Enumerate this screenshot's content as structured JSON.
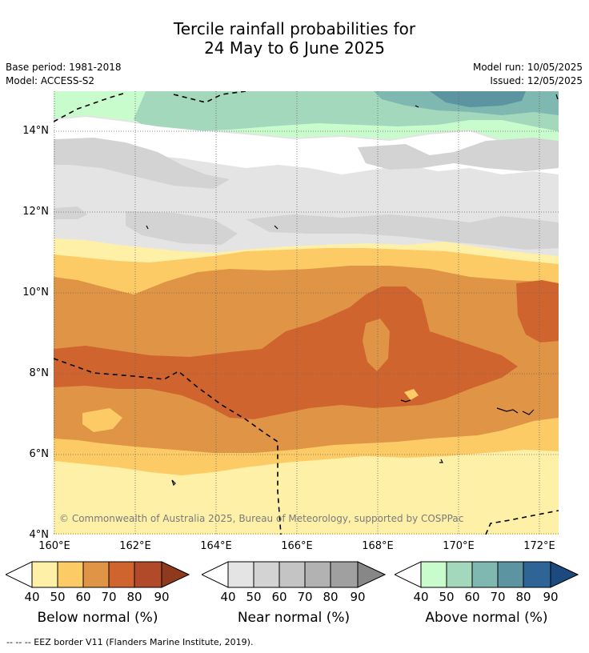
{
  "title": {
    "line1": "Tercile rainfall probabilities for",
    "line2": "24 May to 6 June 2025"
  },
  "meta": {
    "base_period": "Base period: 1981-2018",
    "model": "Model: ACCESS-S2",
    "model_run": "Model run: 10/05/2025",
    "issued": "Issued: 12/05/2025"
  },
  "map": {
    "lat_labels": [
      "14°N",
      "12°N",
      "10°N",
      "8°N",
      "6°N",
      "4°N"
    ],
    "lon_labels": [
      "160°E",
      "162°E",
      "164°E",
      "166°E",
      "168°E",
      "170°E",
      "172°E"
    ],
    "lat_values": [
      14,
      12,
      10,
      8,
      6,
      4
    ],
    "lon_values": [
      160,
      162,
      164,
      166,
      168,
      170,
      172
    ],
    "extent": {
      "lon_min": 160,
      "lon_max": 172.5,
      "lat_min": 4,
      "lat_max": 15
    },
    "copyright": "© Commonwealth of Australia 2025, Bureau of Meteorology, supported by COSPPac",
    "colors": {
      "below": [
        "#fff0a8",
        "#fdcb65",
        "#e09445",
        "#d0642f",
        "#b14a28",
        "#8f3a1c"
      ],
      "near": [
        "#e4e4e4",
        "#d3d3d3",
        "#c4c4c4",
        "#b2b2b2",
        "#a0a0a0",
        "#878787"
      ],
      "above": [
        "#c9fccd",
        "#a3d8bd",
        "#7fb8b0",
        "#5d94a2",
        "#2f6497",
        "#1c4a7f"
      ],
      "eez_border": "#000000"
    }
  },
  "colorbars": [
    {
      "label": "Below normal (%)",
      "ticks": [
        "40",
        "50",
        "60",
        "70",
        "80",
        "90"
      ]
    },
    {
      "label": "Near normal (%)",
      "ticks": [
        "40",
        "50",
        "60",
        "70",
        "80",
        "90"
      ]
    },
    {
      "label": "Above normal (%)",
      "ticks": [
        "40",
        "50",
        "60",
        "70",
        "80",
        "90"
      ]
    }
  ],
  "footnote": "--  --  -- EEZ border V11 (Flanders Marine Institute, 2019)."
}
